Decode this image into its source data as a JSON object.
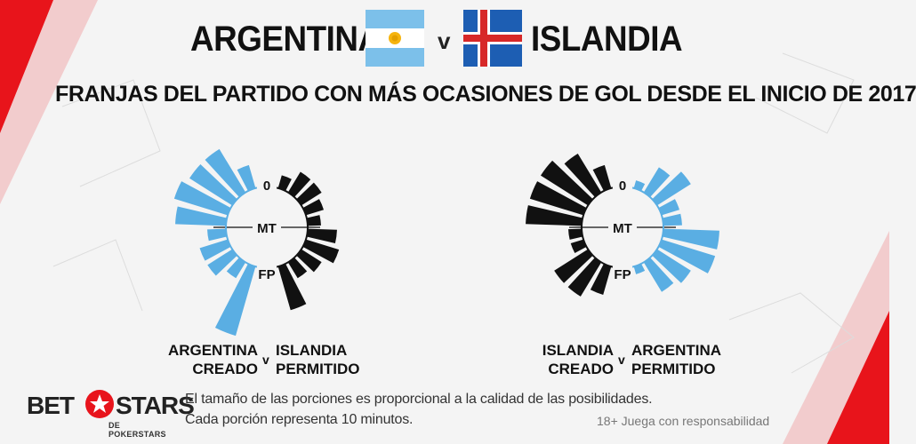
{
  "header": {
    "team_home": "ARGENTINA",
    "vs": "v",
    "team_away": "ISLANDIA",
    "subtitle": "FRANJAS DEL PARTIDO CON MÁS OCASIONES DE GOL DESDE EL INICIO DE 2017"
  },
  "flags": {
    "home_icon": "argentina-flag-icon",
    "away_icon": "iceland-flag-icon"
  },
  "colors": {
    "argentina": "#5aaee3",
    "islandia": "#111111",
    "background": "#f4f4f4",
    "accent_red": "#e8141c"
  },
  "chart_data": [
    {
      "type": "radial-bar",
      "labels": {
        "start": "0",
        "half": "MT",
        "end": "FP"
      },
      "caption_left": [
        "ARGENTINA",
        "CREADO"
      ],
      "caption_v": "v",
      "caption_right": [
        "ISLANDIA",
        "PERMITIDO"
      ],
      "series": [
        {
          "color": "argentina",
          "side": "left",
          "values": [
            4,
            9,
            9,
            10,
            9,
            3,
            5,
            5,
            3,
            13
          ]
        },
        {
          "color": "islandia",
          "side": "right",
          "values": [
            2,
            4,
            4,
            3,
            2,
            5,
            6,
            4,
            3,
            8
          ]
        }
      ]
    },
    {
      "type": "radial-bar",
      "labels": {
        "start": "0",
        "half": "MT",
        "end": "FP"
      },
      "caption_left": [
        "ISLANDIA",
        "CREADO"
      ],
      "caption_v": "v",
      "caption_right": [
        "ARGENTINA",
        "PERMITIDO"
      ],
      "series": [
        {
          "color": "islandia",
          "side": "left",
          "values": [
            4,
            8,
            10,
            10,
            10,
            2,
            2,
            7,
            7,
            5
          ]
        },
        {
          "color": "argentina",
          "side": "right",
          "values": [
            1,
            5,
            7,
            3,
            3,
            10,
            10,
            7,
            6,
            1
          ]
        }
      ]
    }
  ],
  "footer": {
    "logo_bet": "BET",
    "logo_stars": "STARS",
    "logo_sub": "DE POKERSTARS",
    "note_line1": "El tamaño de las porciones es proporcional a la calidad de las posibilidades.",
    "note_line2": "Cada porción representa 10 minutos.",
    "responsibility": "18+ Juega con responsabilidad"
  }
}
